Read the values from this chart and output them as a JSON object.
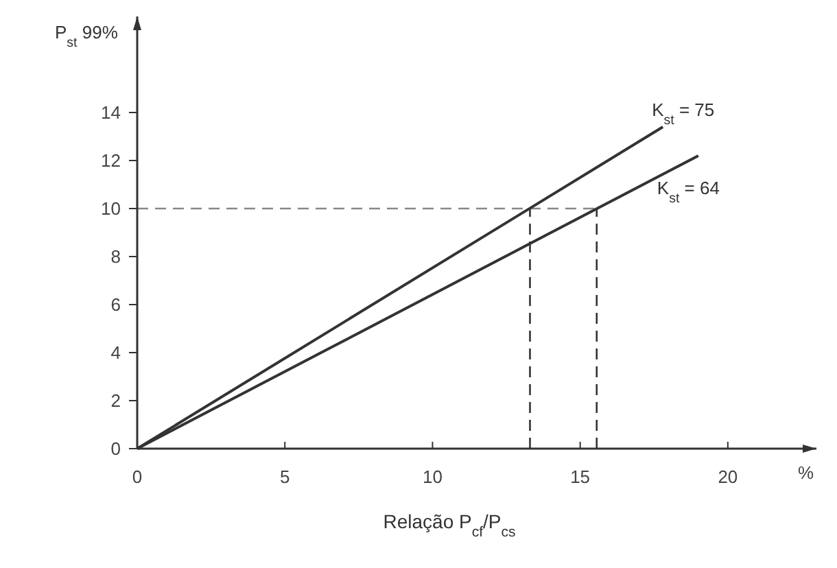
{
  "chart_data": {
    "type": "line",
    "xlabel": "Relação P$_{cf}$/P$_{cs}$",
    "ylabel": "P$_{st}$ 99%",
    "annotations": [
      "%"
    ],
    "xlim": [
      0,
      23
    ],
    "ylim": [
      0,
      18
    ],
    "xticks": [
      0,
      5,
      10,
      15,
      20
    ],
    "yticks": [
      0,
      2,
      4,
      6,
      8,
      10,
      12,
      14
    ],
    "grid": false,
    "marker": "none",
    "line_style": "solid",
    "series": [
      {
        "name": "K$_{st}$ = 75",
        "color": "#333333",
        "x": [
          0,
          17.8
        ],
        "values": [
          0,
          13.4
        ]
      },
      {
        "name": "K$_{st}$ = 64",
        "color": "#333333",
        "x": [
          0,
          19
        ],
        "values": [
          0,
          12.2
        ]
      }
    ],
    "ref_lines": [
      {
        "axis": "y",
        "value": 10,
        "color": "#888888",
        "line_style": "dashed"
      },
      {
        "axis": "x",
        "value": 13.3,
        "color": "#333333",
        "line_style": "dashed"
      },
      {
        "axis": "x",
        "value": 15.56,
        "color": "#333333",
        "line_style": "dashed"
      }
    ]
  }
}
